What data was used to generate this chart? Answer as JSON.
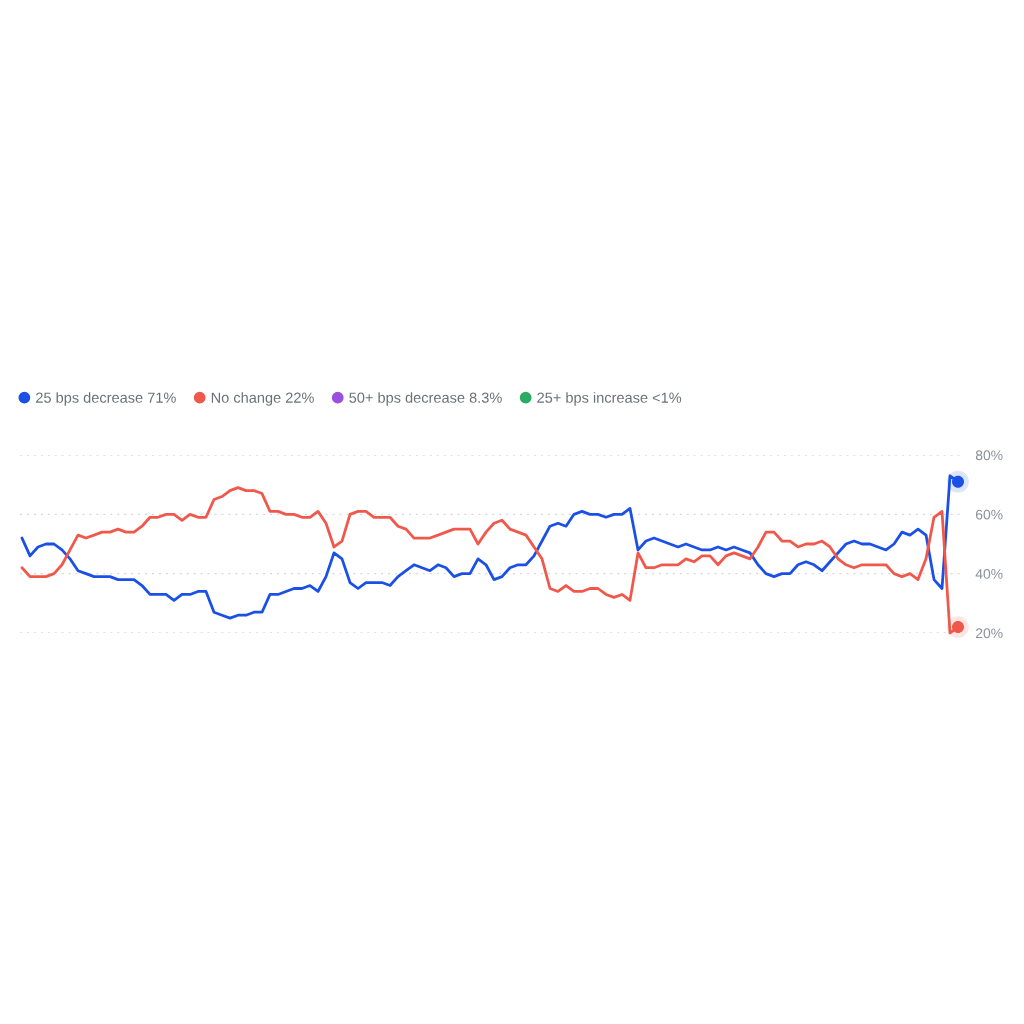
{
  "chart_data": {
    "type": "line",
    "categories": [
      null,
      null,
      null,
      null,
      null,
      null,
      null,
      null,
      null,
      null,
      null,
      null,
      null,
      null,
      null,
      null,
      null,
      null,
      null,
      null,
      null,
      null,
      null,
      null,
      null,
      null,
      null,
      null,
      null,
      null,
      null,
      null,
      null,
      null,
      null,
      null,
      null,
      null,
      null,
      null,
      null,
      null,
      null,
      null,
      null,
      null,
      null,
      null,
      null,
      null,
      null,
      null,
      null,
      null,
      null,
      null,
      null,
      null,
      null,
      null,
      null,
      null,
      null,
      null,
      null,
      null,
      null,
      null,
      null,
      null,
      null,
      null,
      null,
      null,
      null,
      null,
      null,
      null,
      null,
      null,
      null,
      null,
      null,
      null,
      null,
      null,
      null,
      null,
      null,
      null,
      null,
      null,
      null,
      null,
      null,
      null,
      null,
      null,
      null,
      null,
      null,
      null,
      null,
      null,
      null,
      null,
      null,
      null,
      null,
      null,
      null,
      null,
      null,
      null,
      null,
      null,
      null,
      null
    ],
    "series": [
      {
        "name": "25 bps decrease 71%",
        "color": "#1a50e6",
        "values": [
          52,
          46,
          49,
          50,
          50,
          48,
          45,
          41,
          40,
          39,
          39,
          39,
          38,
          38,
          38,
          36,
          33,
          33,
          33,
          31,
          33,
          33,
          34,
          34,
          27,
          26,
          25,
          26,
          26,
          27,
          27,
          33,
          33,
          34,
          35,
          35,
          36,
          34,
          39,
          47,
          45,
          37,
          35,
          37,
          37,
          37,
          36,
          39,
          41,
          43,
          42,
          41,
          43,
          42,
          39,
          40,
          40,
          45,
          43,
          38,
          39,
          42,
          43,
          43,
          46,
          51,
          56,
          57,
          56,
          60,
          61,
          60,
          60,
          59,
          60,
          60,
          62,
          48,
          51,
          52,
          51,
          50,
          49,
          50,
          49,
          48,
          48,
          49,
          48,
          49,
          48,
          47,
          43,
          40,
          39,
          40,
          40,
          43,
          44,
          43,
          41,
          44,
          47,
          50,
          51,
          50,
          50,
          49,
          48,
          50,
          54,
          53,
          55,
          53,
          38,
          35,
          73,
          71
        ]
      },
      {
        "name": "No change 22%",
        "color": "#f0584c",
        "values": [
          42,
          39,
          39,
          39,
          40,
          43,
          48,
          53,
          52,
          53,
          54,
          54,
          55,
          54,
          54,
          56,
          59,
          59,
          60,
          60,
          58,
          60,
          59,
          59,
          65,
          66,
          68,
          69,
          68,
          68,
          67,
          61,
          61,
          60,
          60,
          59,
          59,
          61,
          57,
          49,
          51,
          60,
          61,
          61,
          59,
          59,
          59,
          56,
          55,
          52,
          52,
          52,
          53,
          54,
          55,
          55,
          55,
          50,
          54,
          57,
          58,
          55,
          54,
          53,
          49,
          45,
          35,
          34,
          36,
          34,
          34,
          35,
          35,
          33,
          32,
          33,
          31,
          47,
          42,
          42,
          43,
          43,
          43,
          45,
          44,
          46,
          46,
          43,
          46,
          47,
          46,
          45,
          49,
          54,
          54,
          51,
          51,
          49,
          50,
          50,
          51,
          49,
          45,
          43,
          42,
          43,
          43,
          43,
          43,
          40,
          39,
          40,
          38,
          45,
          59,
          61,
          20,
          22
        ]
      },
      {
        "name": "50+ bps decrease 8.3%",
        "color": "#9b4fdf",
        "values": [
          null,
          null,
          null,
          null,
          null,
          null,
          null,
          null,
          null,
          null,
          null,
          null,
          null,
          null,
          null,
          null,
          null,
          null,
          null,
          null,
          null,
          null,
          null,
          null,
          null,
          null,
          null,
          null,
          null,
          null,
          null,
          null,
          null,
          null,
          null,
          null,
          null,
          null,
          null,
          null,
          null,
          null,
          null,
          null,
          null,
          null,
          null,
          null,
          null,
          null,
          null,
          null,
          null,
          null,
          null,
          null,
          null,
          null,
          null,
          null,
          null,
          null,
          null,
          null,
          null,
          null,
          null,
          null,
          null,
          null,
          null,
          null,
          null,
          null,
          null,
          null,
          null,
          null,
          null,
          null,
          null,
          null,
          null,
          null,
          null,
          null,
          null,
          null,
          null,
          null,
          null,
          null,
          null,
          null,
          null,
          null,
          null,
          null,
          null,
          null,
          null,
          null,
          null,
          null,
          null,
          null,
          null,
          null,
          null,
          null,
          null,
          null,
          null,
          null,
          null,
          null,
          null,
          null
        ]
      },
      {
        "name": "25+ bps increase <1%",
        "color": "#2aad62",
        "values": [
          null,
          null,
          null,
          null,
          null,
          null,
          null,
          null,
          null,
          null,
          null,
          null,
          null,
          null,
          null,
          null,
          null,
          null,
          null,
          null,
          null,
          null,
          null,
          null,
          null,
          null,
          null,
          null,
          null,
          null,
          null,
          null,
          null,
          null,
          null,
          null,
          null,
          null,
          null,
          null,
          null,
          null,
          null,
          null,
          null,
          null,
          null,
          null,
          null,
          null,
          null,
          null,
          null,
          null,
          null,
          null,
          null,
          null,
          null,
          null,
          null,
          null,
          null,
          null,
          null,
          null,
          null,
          null,
          null,
          null,
          null,
          null,
          null,
          null,
          null,
          null,
          null,
          null,
          null,
          null,
          null,
          null,
          null,
          null,
          null,
          null,
          null,
          null,
          null,
          null,
          null,
          null,
          null,
          null,
          null,
          null,
          null,
          null,
          null,
          null,
          null,
          null,
          null,
          null,
          null,
          null,
          null,
          null,
          null,
          null,
          null,
          null,
          null,
          null,
          null,
          null,
          null,
          null
        ]
      },
      {
        "type": "scatter",
        "color": "#1a50e6",
        "values": [
          null,
          null,
          null,
          null,
          null,
          null,
          null,
          null,
          null,
          null,
          null,
          null,
          null,
          null,
          null,
          null,
          null,
          null,
          null,
          null,
          null,
          null,
          null,
          null,
          null,
          null,
          null,
          null,
          null,
          null,
          null,
          null,
          null,
          null,
          null,
          null,
          null,
          null,
          null,
          null,
          null,
          null,
          null,
          null,
          null,
          null,
          null,
          null,
          null,
          null,
          null,
          null,
          null,
          null,
          null,
          null,
          null,
          null,
          null,
          null,
          null,
          null,
          null,
          null,
          null,
          null,
          null,
          null,
          null,
          null,
          null,
          null,
          null,
          null,
          null,
          null,
          null,
          null,
          null,
          null,
          null,
          null,
          null,
          null,
          null,
          null,
          null,
          null,
          null,
          null,
          null,
          null,
          null,
          null,
          null,
          null,
          null,
          null,
          null,
          null,
          null,
          null,
          null,
          null,
          null,
          null,
          null,
          null,
          null,
          null,
          null,
          null,
          null,
          null,
          null,
          null,
          null,
          71
        ]
      },
      {
        "type": "scatter",
        "color": "#f0584c",
        "values": [
          null,
          null,
          null,
          null,
          null,
          null,
          null,
          null,
          null,
          null,
          null,
          null,
          null,
          null,
          null,
          null,
          null,
          null,
          null,
          null,
          null,
          null,
          null,
          null,
          null,
          null,
          null,
          null,
          null,
          null,
          null,
          null,
          null,
          null,
          null,
          null,
          null,
          null,
          null,
          null,
          null,
          null,
          null,
          null,
          null,
          null,
          null,
          null,
          null,
          null,
          null,
          null,
          null,
          null,
          null,
          null,
          null,
          null,
          null,
          null,
          null,
          null,
          null,
          null,
          null,
          null,
          null,
          null,
          null,
          null,
          null,
          null,
          null,
          null,
          null,
          null,
          null,
          null,
          null,
          null,
          null,
          null,
          null,
          null,
          null,
          null,
          null,
          null,
          null,
          null,
          null,
          null,
          null,
          null,
          null,
          null,
          null,
          null,
          null,
          null,
          null,
          null,
          null,
          null,
          null,
          null,
          null,
          null,
          null,
          null,
          null,
          null,
          null,
          null,
          null,
          null,
          null,
          22
        ]
      }
    ],
    "ylim": [
      20,
      80
    ],
    "yticks": [
      {
        "value": 20,
        "label": "20%"
      },
      {
        "value": 40,
        "label": "40%"
      },
      {
        "value": 60,
        "label": "60%"
      },
      {
        "value": 80,
        "label": "80%"
      }
    ],
    "grid": "y",
    "legend": "top left",
    "tick_labels": "y"
  }
}
